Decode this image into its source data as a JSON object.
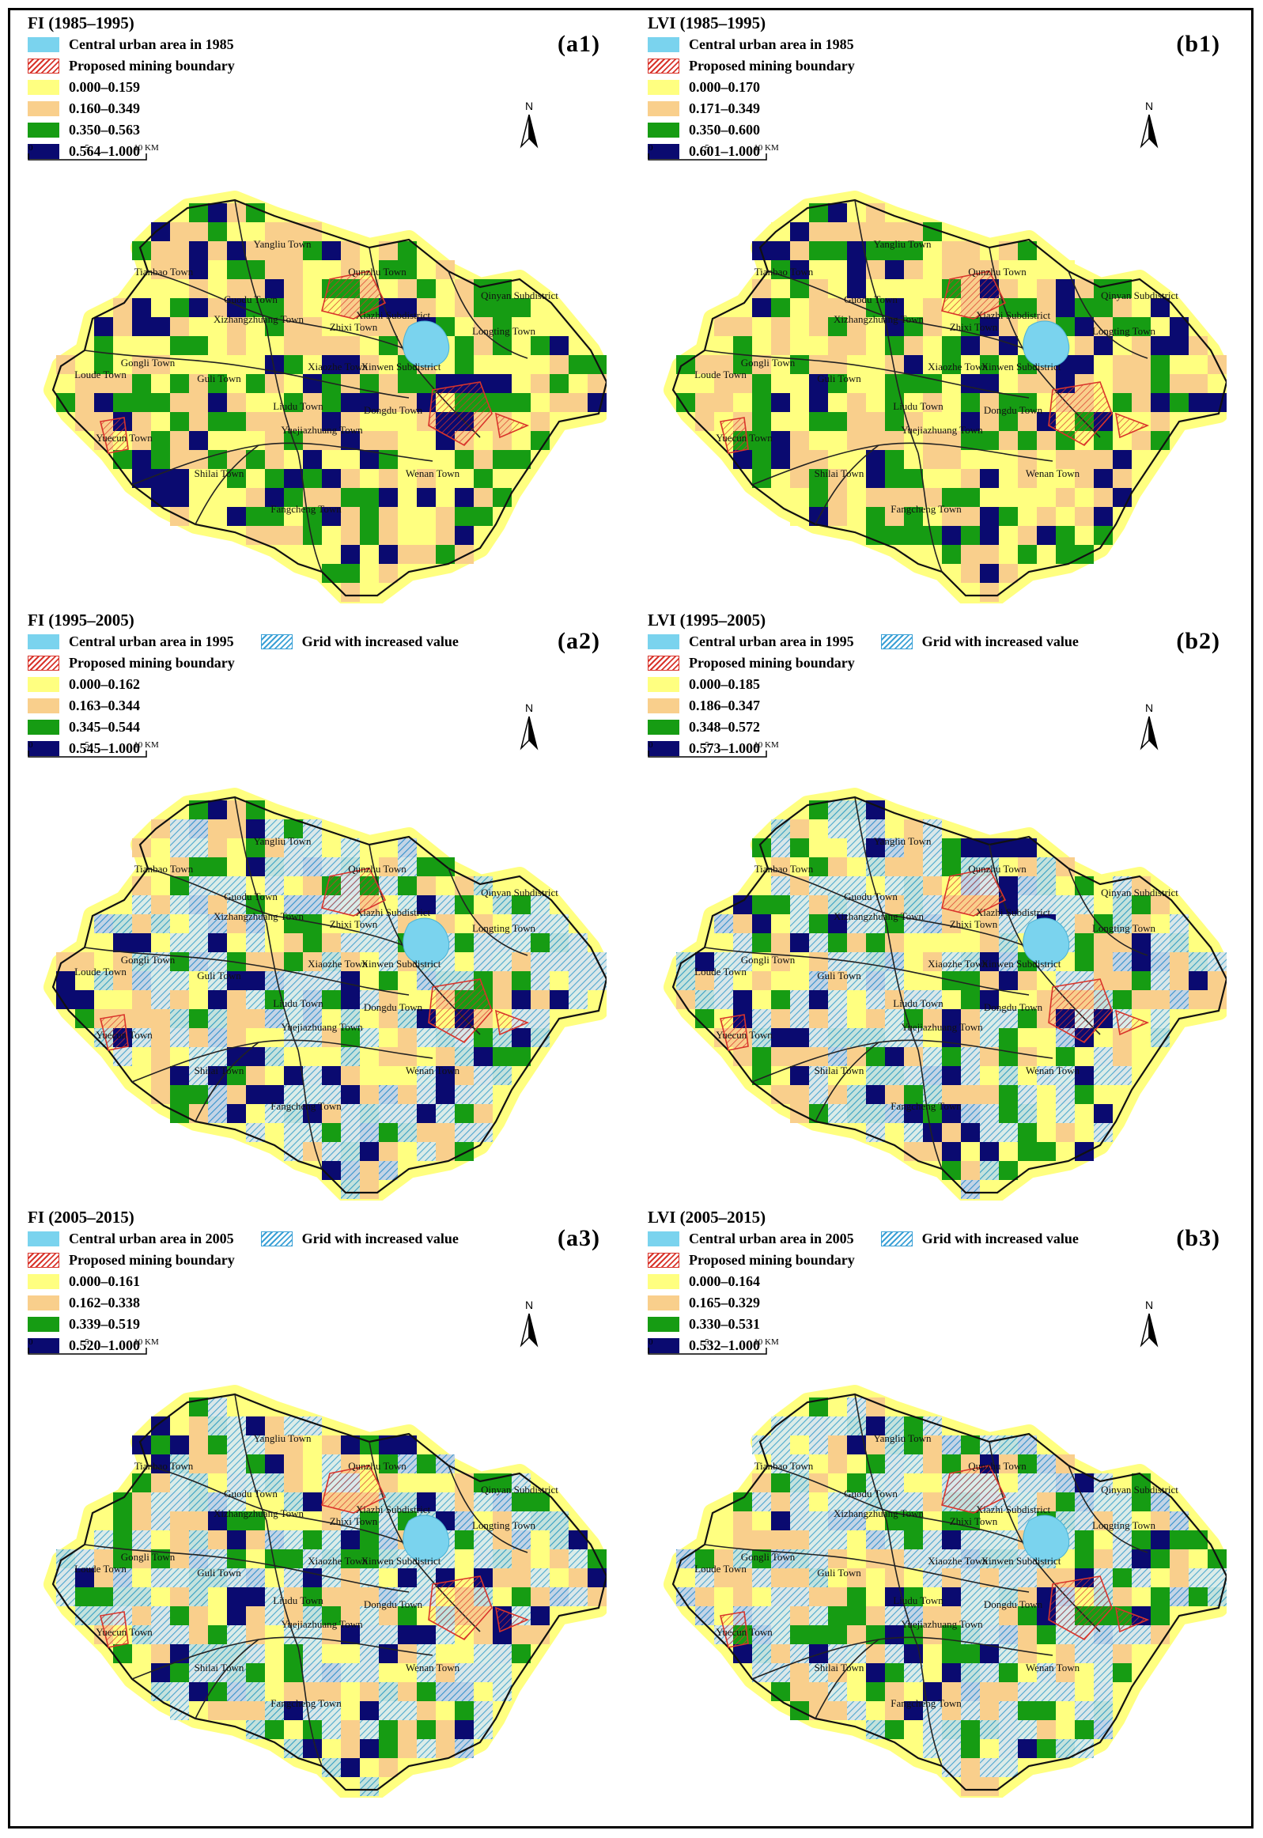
{
  "colors": {
    "class1": "#ffff80",
    "class2": "#f9cf8c",
    "class3": "#169c13",
    "class4": "#0a0a70",
    "urban": "#7ad3ee",
    "mining": "#d9342b",
    "grid_increase": "#3aa0d6",
    "border": "#000000"
  },
  "legend_common": {
    "urban_label_prefix": "Central urban area in",
    "mining_label": "Proposed mining boundary",
    "grid_label": "Grid with increased value"
  },
  "scale": {
    "ticks": [
      "0",
      "5",
      "10 KM"
    ]
  },
  "north_label": "N",
  "town_labels": [
    "Yangliu Town",
    "Qunzhu Town",
    "Qinyan Subdistrict",
    "Tianbao Town",
    "Guodu Town",
    "Xizhangzhuang Town",
    "Xiazhi Subdistrict",
    "Zhixi Town",
    "Longting Town",
    "Gongli Town",
    "Loude Town",
    "Guli Town",
    "Xiaozhe Town",
    "Xinwen Subdistrict",
    "Liudu Town",
    "Dongdu Town",
    "Yuecun Town",
    "Yuejiazhuang Town",
    "Wenan Town",
    "Shilai Town",
    "Fangcheng Town"
  ],
  "panels": [
    {
      "id": "a1",
      "title": "FI (1985–1995)",
      "label": "(a1)",
      "urban_year": "1985",
      "show_grid_legend": false,
      "classes": [
        "0.000–0.159",
        "0.160–0.349",
        "0.350–0.563",
        "0.564–1.000"
      ]
    },
    {
      "id": "b1",
      "title": "LVI (1985–1995)",
      "label": "(b1)",
      "urban_year": "1985",
      "show_grid_legend": false,
      "classes": [
        "0.000–0.170",
        "0.171–0.349",
        "0.350–0.600",
        "0.601–1.000"
      ]
    },
    {
      "id": "a2",
      "title": "FI (1995–2005)",
      "label": "(a2)",
      "urban_year": "1995",
      "show_grid_legend": true,
      "classes": [
        "0.000–0.162",
        "0.163–0.344",
        "0.345–0.544",
        "0.545–1.000"
      ]
    },
    {
      "id": "b2",
      "title": "LVI (1995–2005)",
      "label": "(b2)",
      "urban_year": "1995",
      "show_grid_legend": true,
      "classes": [
        "0.000–0.185",
        "0.186–0.347",
        "0.348–0.572",
        "0.573–1.000"
      ]
    },
    {
      "id": "a3",
      "title": "FI (2005–2015)",
      "label": "(a3)",
      "urban_year": "2005",
      "show_grid_legend": true,
      "classes": [
        "0.000–0.161",
        "0.162–0.338",
        "0.339–0.519",
        "0.520–1.000"
      ]
    },
    {
      "id": "b3",
      "title": "LVI (2005–2015)",
      "label": "(b3)",
      "urban_year": "2005",
      "show_grid_legend": true,
      "classes": [
        "0.000–0.164",
        "0.165–0.329",
        "0.330–0.531",
        "0.532–1.000"
      ]
    }
  ]
}
